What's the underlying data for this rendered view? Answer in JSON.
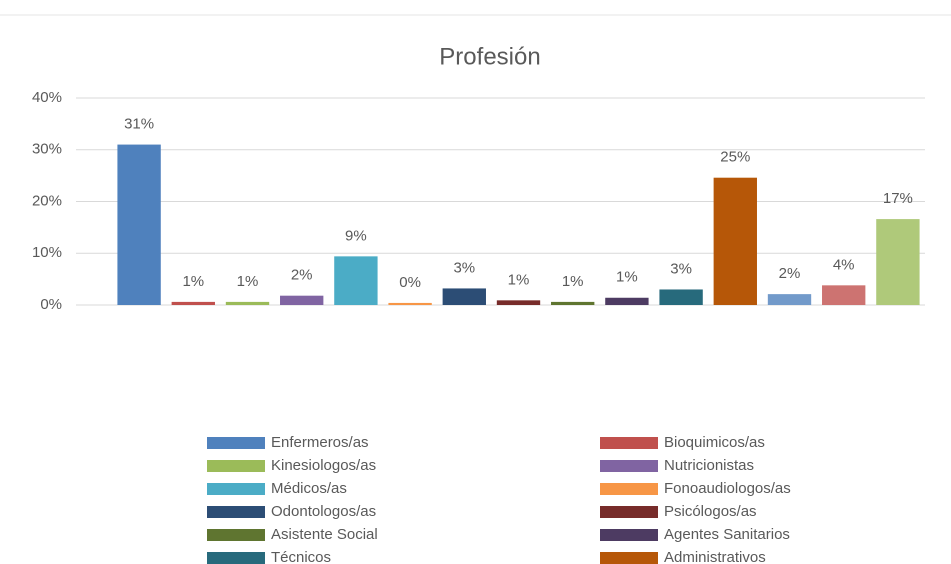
{
  "chart_data": {
    "type": "bar",
    "title": "Profesión",
    "categories": [
      "Enfermeros/as",
      "Bioquimicos/as",
      "Kinesiologos/as",
      "Nutricionistas",
      "Médicos/as",
      "Fonoaudiologos/as",
      "Odontologos/as",
      "Psicólogos/as",
      "Asistente Social",
      "Agentes Sanitarios",
      "Técnicos",
      "Administrativos",
      null,
      null,
      null
    ],
    "values": [
      31,
      0.6,
      0.6,
      1.8,
      9.4,
      0.4,
      3.2,
      0.9,
      0.6,
      1.4,
      3.0,
      24.6,
      2.1,
      3.8,
      16.6
    ],
    "value_labels": [
      "31%",
      "1%",
      "1%",
      "2%",
      "9%",
      "0%",
      "3%",
      "1%",
      "1%",
      "1%",
      "3%",
      "25%",
      "2%",
      "4%",
      "17%"
    ],
    "colors": [
      "#4f81bd",
      "#c0504d",
      "#9bbb59",
      "#8064a2",
      "#4bacc6",
      "#f79646",
      "#2c4d75",
      "#772c2a",
      "#5f7530",
      "#4d3b62",
      "#276a7c",
      "#b65708",
      "#729aca",
      "#cd7371",
      "#afc97a"
    ],
    "ylim": [
      0,
      40
    ],
    "yticks": [
      {
        "value": 0,
        "label": "0%"
      },
      {
        "value": 10,
        "label": "10%"
      },
      {
        "value": 20,
        "label": "20%"
      },
      {
        "value": 30,
        "label": "30%"
      },
      {
        "value": 40,
        "label": "40%"
      }
    ],
    "grid": true,
    "legend": "bottom"
  }
}
